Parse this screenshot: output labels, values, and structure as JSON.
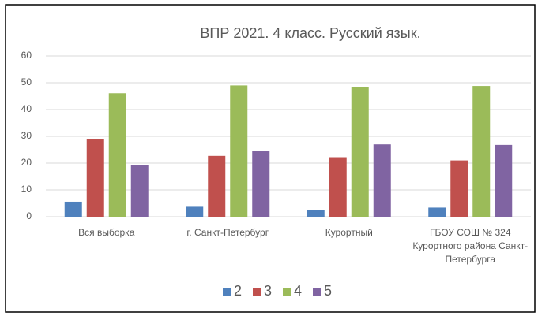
{
  "chart_data": {
    "type": "bar",
    "title": "ВПР 2021. 4 класс. Русский язык.",
    "categories": [
      "Вся выборка",
      "г. Санкт-Петербург",
      "Курортный",
      "ГБОУ СОШ № 324 Курортного района Санкт-Петербурга"
    ],
    "series": [
      {
        "name": "2",
        "color": "#4f81bd",
        "values": [
          5.6,
          3.7,
          2.5,
          3.4
        ]
      },
      {
        "name": "3",
        "color": "#c0504d",
        "values": [
          28.9,
          22.7,
          22.2,
          21.0
        ]
      },
      {
        "name": "4",
        "color": "#9bbb59",
        "values": [
          46.1,
          49.0,
          48.3,
          48.8
        ]
      },
      {
        "name": "5",
        "color": "#8064a2",
        "values": [
          19.3,
          24.6,
          27.0,
          26.8
        ]
      }
    ],
    "ylim": [
      0,
      60
    ],
    "yticks": [
      0,
      10,
      20,
      30,
      40,
      50,
      60
    ],
    "grid": true,
    "legend": "bottom"
  }
}
